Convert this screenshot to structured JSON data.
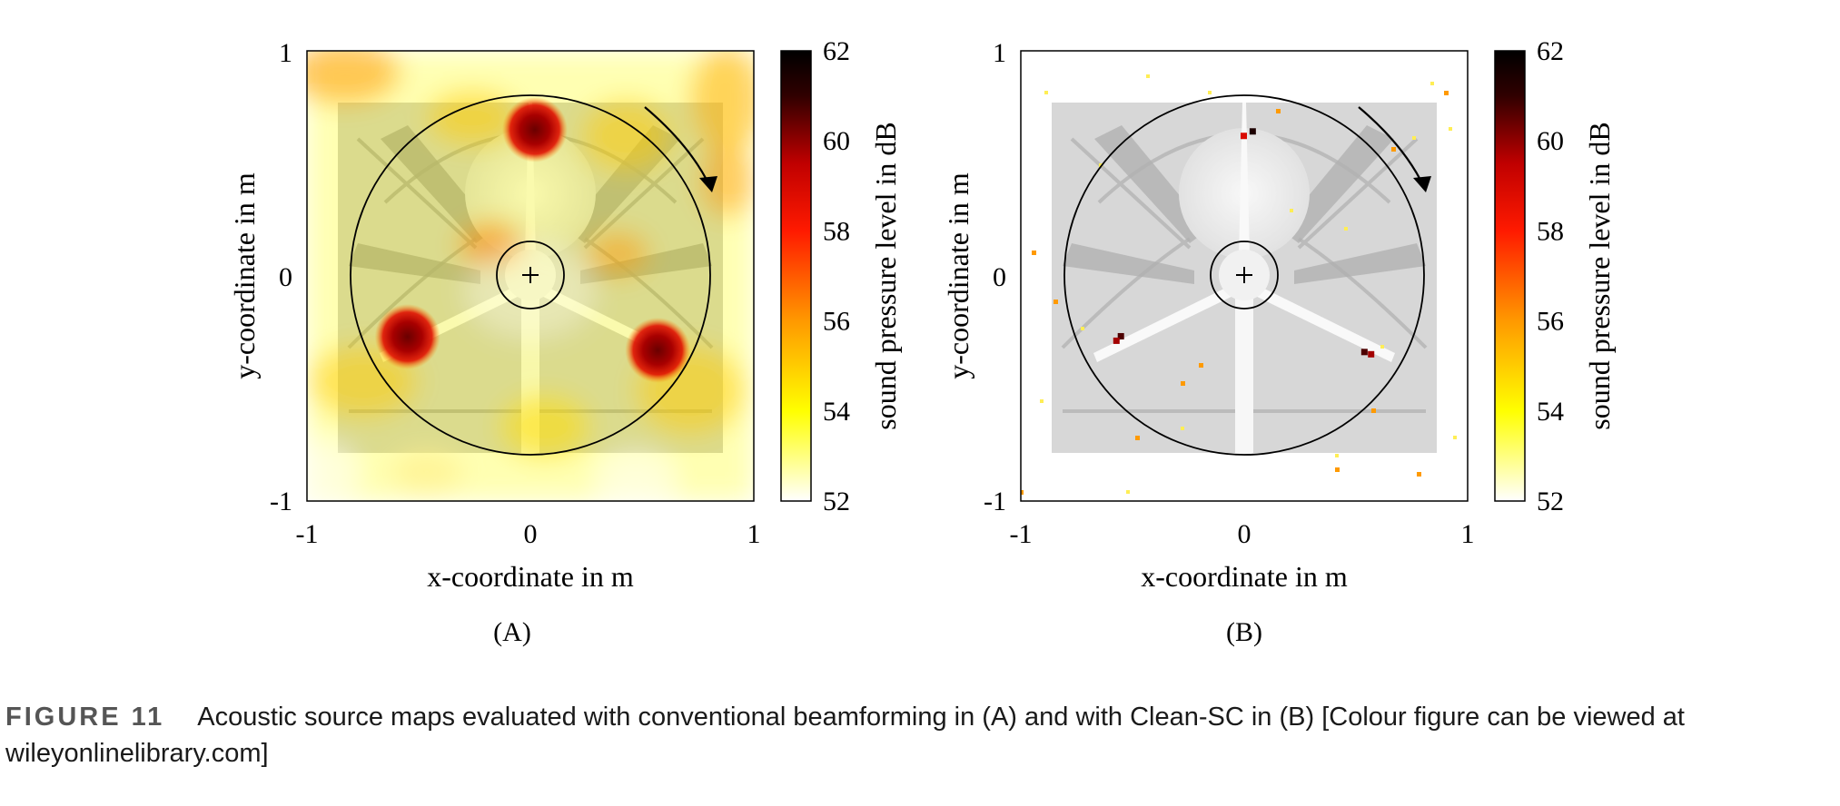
{
  "figure": {
    "label": "FIGURE 11",
    "caption": "Acoustic source maps evaluated with conventional beamforming in (A) and with Clean-SC in (B) [Colour figure can be viewed at wileyonlinelibrary.com]"
  },
  "colormap": [
    "#ffffff",
    "#ffff00",
    "#ff9900",
    "#ff1a00",
    "#c00000",
    "#300000",
    "#000000"
  ],
  "chart_data": [
    {
      "type": "heatmap",
      "panel_label": "(A)",
      "method": "conventional beamforming",
      "xlabel": "x-coordinate in m",
      "ylabel": "y-coordinate in m",
      "xlim": [
        -1,
        1
      ],
      "ylim": [
        -1,
        1
      ],
      "xticks": [
        "-1",
        "0",
        "1"
      ],
      "yticks": [
        "1",
        "0",
        "-1"
      ],
      "colorbar": {
        "label": "sound pressure level in dB",
        "range": [
          52,
          62
        ],
        "ticks": [
          "62",
          "60",
          "58",
          "56",
          "54",
          "52"
        ]
      },
      "overlay": {
        "outer_circle_radius_m": 0.8,
        "hub_circle_radius_m": 0.15,
        "rotation_direction": "clockwise"
      },
      "sources": [
        {
          "x": 0.02,
          "y": 0.65,
          "level": 61
        },
        {
          "x": -0.55,
          "y": -0.27,
          "level": 61
        },
        {
          "x": 0.57,
          "y": -0.33,
          "level": 61
        }
      ]
    },
    {
      "type": "heatmap",
      "panel_label": "(B)",
      "method": "Clean-SC",
      "xlabel": "x-coordinate in m",
      "ylabel": "y-coordinate in m",
      "xlim": [
        -1,
        1
      ],
      "ylim": [
        -1,
        1
      ],
      "xticks": [
        "-1",
        "0",
        "1"
      ],
      "yticks": [
        "1",
        "0",
        "-1"
      ],
      "colorbar": {
        "label": "sound pressure level in dB",
        "range": [
          52,
          62
        ],
        "ticks": [
          "62",
          "60",
          "58",
          "56",
          "54",
          "52"
        ]
      },
      "overlay": {
        "outer_circle_radius_m": 0.8,
        "hub_circle_radius_m": 0.15,
        "rotation_direction": "clockwise"
      },
      "sources": [
        {
          "x": 0.04,
          "y": 0.64,
          "level": 61
        },
        {
          "x": 0.0,
          "y": 0.62,
          "level": 58
        },
        {
          "x": -0.55,
          "y": -0.27,
          "level": 60
        },
        {
          "x": -0.57,
          "y": -0.29,
          "level": 59
        },
        {
          "x": 0.54,
          "y": -0.34,
          "level": 60
        },
        {
          "x": 0.57,
          "y": -0.35,
          "level": 59
        }
      ]
    }
  ]
}
